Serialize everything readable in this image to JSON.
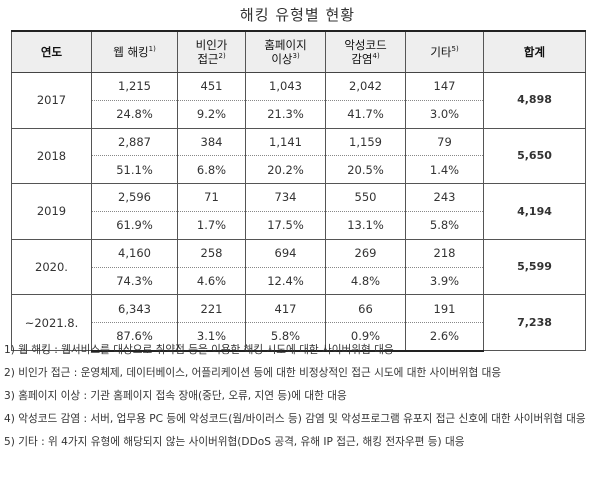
{
  "title": "해킹 유형별 현황",
  "table": {
    "headers": [
      {
        "line1": "연도",
        "line2": "",
        "sup": ""
      },
      {
        "line1": "웹 해킹",
        "line2": "",
        "sup": "1)"
      },
      {
        "line1": "비인가",
        "line2": "접근",
        "sup": "2)"
      },
      {
        "line1": "홈페이지",
        "line2": "이상",
        "sup": "3)"
      },
      {
        "line1": "악성코드",
        "line2": "감염",
        "sup": "4)"
      },
      {
        "line1": "기타",
        "line2": "",
        "sup": "5)"
      },
      {
        "line1": "합계",
        "line2": "",
        "sup": ""
      }
    ],
    "rows": [
      {
        "year": "2017",
        "counts": [
          "1,215",
          "451",
          "1,043",
          "2,042",
          "147"
        ],
        "pcts": [
          "24.8%",
          "9.2%",
          "21.3%",
          "41.7%",
          "3.0%"
        ],
        "total": "4,898"
      },
      {
        "year": "2018",
        "counts": [
          "2,887",
          "384",
          "1,141",
          "1,159",
          "79"
        ],
        "pcts": [
          "51.1%",
          "6.8%",
          "20.2%",
          "20.5%",
          "1.4%"
        ],
        "total": "5,650"
      },
      {
        "year": "2019",
        "counts": [
          "2,596",
          "71",
          "734",
          "550",
          "243"
        ],
        "pcts": [
          "61.9%",
          "1.7%",
          "17.5%",
          "13.1%",
          "5.8%"
        ],
        "total": "4,194"
      },
      {
        "year": "2020.",
        "counts": [
          "4,160",
          "258",
          "694",
          "269",
          "218"
        ],
        "pcts": [
          "74.3%",
          "4.6%",
          "12.4%",
          "4.8%",
          "3.9%"
        ],
        "total": "5,599"
      },
      {
        "year": "~2021.8.",
        "counts": [
          "6,343",
          "221",
          "417",
          "66",
          "191"
        ],
        "pcts": [
          "87.6%",
          "3.1%",
          "5.8%",
          "0.9%",
          "2.6%"
        ],
        "total": "7,238"
      }
    ]
  },
  "notes": [
    "1) 웹 해킹 : 웹서비스를 대상으로 취약점 등을 이용한 해킹 시도에 대한 사이버위협 대응",
    "2) 비인가 접근 : 운영체제, 데이터베이스, 어플리케이션 등에 대한 비정상적인 접근 시도에 대한 사이버위협 대응",
    "3) 홈페이지 이상 : 기관 홈페이지 접속 장애(중단, 오류, 지연 등)에 대한 대응",
    "4) 악성코드 감염 : 서버, 업무용 PC 등에 악성코드(웜/바이러스 등) 감염 및 악성프로그램 유포지 접근 신호에 대한 사이버위협 대응",
    "5) 기타 : 위 4가지 유형에 해당되지 않는 사이버위협(DDoS 공격, 유해 IP 접근, 해킹 전자우편 등) 대응"
  ]
}
